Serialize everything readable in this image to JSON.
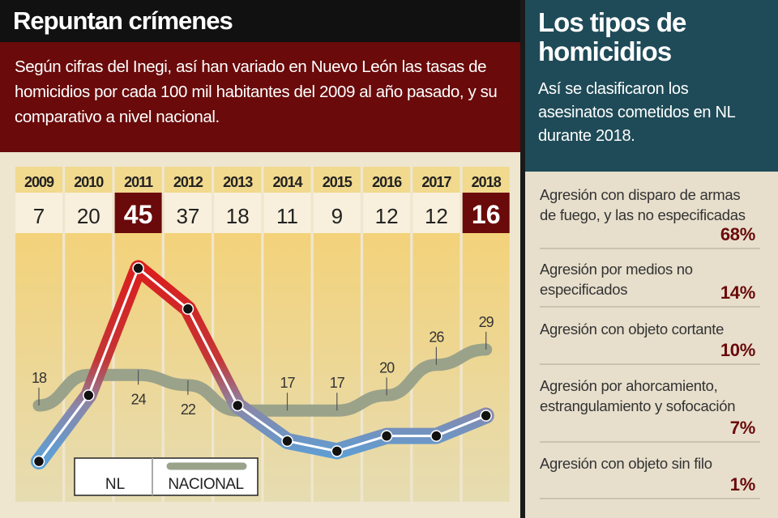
{
  "left": {
    "title": "Repuntan crímenes",
    "subtitle": "Según cifras del Inegi, así han variado en Nuevo León las tasas de homicidios por cada 100 mil habitantes del 2009 al año pasado, y su comparativo a nivel nacional."
  },
  "chart_data": {
    "type": "line",
    "categories": [
      "2009",
      "2010",
      "2011",
      "2012",
      "2013",
      "2014",
      "2015",
      "2016",
      "2017",
      "2018"
    ],
    "series": [
      {
        "name": "NL",
        "values": [
          7,
          20,
          45,
          37,
          18,
          11,
          9,
          12,
          12,
          16
        ],
        "color_top": "#d91f1f",
        "color_bottom": "#5aa0d8"
      },
      {
        "name": "NACIONAL",
        "values": [
          18,
          24,
          24,
          22,
          17,
          17,
          17,
          20,
          26,
          29
        ],
        "labels": [
          "18",
          "",
          "24",
          "22",
          "",
          "17",
          "17",
          "20",
          "26",
          "29"
        ],
        "color": "#9aa28a"
      }
    ],
    "highlighted": [
      "2011",
      "2018"
    ],
    "legend": "bottom-left",
    "grid": false
  },
  "right": {
    "title": "Los tipos de homicidios",
    "subtitle": "Así se clasificaron los asesinatos cometidos en NL durante 2018.",
    "items": [
      {
        "label": "Agresión con disparo de armas de fuego, y las no especificadas",
        "pct": "68%"
      },
      {
        "label": "Agresión por medios no especificados",
        "pct": "14%"
      },
      {
        "label": "Agresión con objeto cortante",
        "pct": "10%"
      },
      {
        "label": "Agresión por ahorcamiento, estrangulamiento y sofocación",
        "pct": "7%"
      },
      {
        "label": "Agresión con objeto sin filo",
        "pct": "1%"
      }
    ]
  }
}
